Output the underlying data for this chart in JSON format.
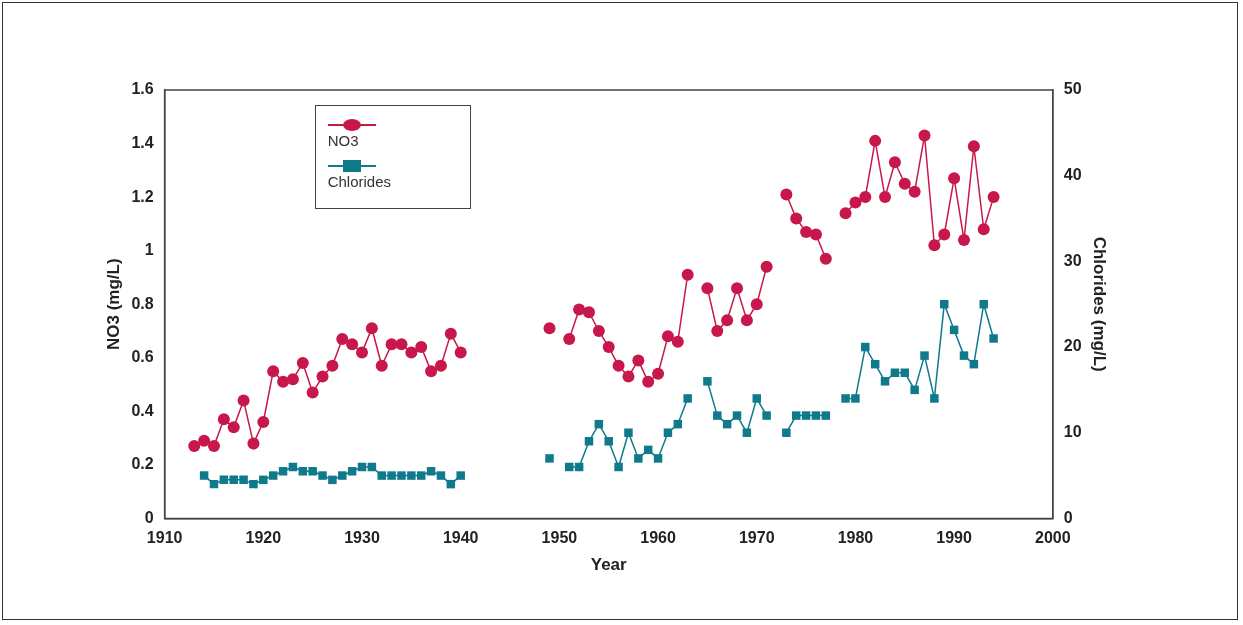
{
  "chart_data": {
    "type": "line",
    "xlabel": "Year",
    "ylabel": "NO3 (mg/L)",
    "y2label": "Chlorides (mg/L)",
    "x": [
      1913,
      1914,
      1915,
      1916,
      1917,
      1918,
      1919,
      1920,
      1921,
      1922,
      1923,
      1924,
      1925,
      1926,
      1927,
      1928,
      1929,
      1930,
      1931,
      1932,
      1933,
      1934,
      1935,
      1936,
      1937,
      1938,
      1939,
      1940,
      1941,
      1942,
      1943,
      1944,
      1945,
      1946,
      1947,
      1948,
      1949,
      1950,
      1951,
      1952,
      1953,
      1954,
      1955,
      1956,
      1957,
      1958,
      1959,
      1960,
      1961,
      1962,
      1963,
      1964,
      1965,
      1966,
      1967,
      1968,
      1969,
      1970,
      1971,
      1972,
      1973,
      1974,
      1975,
      1976,
      1977,
      1978,
      1979,
      1980,
      1981,
      1982,
      1983,
      1984,
      1985,
      1986,
      1987,
      1988,
      1989,
      1990,
      1991,
      1992,
      1993,
      1994
    ],
    "series": [
      {
        "name": "NO3",
        "color": "#c8174a",
        "marker": "circle",
        "values": [
          0.27,
          0.29,
          0.27,
          0.37,
          0.34,
          0.44,
          0.28,
          0.36,
          0.55,
          0.51,
          0.52,
          0.58,
          0.47,
          0.53,
          0.57,
          0.67,
          0.65,
          0.62,
          0.71,
          0.57,
          0.65,
          0.65,
          0.62,
          0.64,
          0.55,
          0.57,
          0.69,
          0.62,
          null,
          null,
          null,
          null,
          null,
          null,
          null,
          null,
          0.71,
          null,
          0.67,
          0.78,
          0.77,
          0.7,
          0.64,
          0.57,
          0.53,
          0.59,
          0.51,
          0.54,
          0.68,
          0.66,
          0.91,
          null,
          0.86,
          0.7,
          0.74,
          0.86,
          0.74,
          0.8,
          0.94,
          null,
          1.21,
          1.12,
          1.07,
          1.06,
          0.97,
          null,
          1.14,
          1.18,
          1.2,
          1.41,
          1.2,
          1.33,
          1.25,
          1.22,
          1.43,
          1.02,
          1.06,
          1.27,
          1.04,
          1.39,
          1.08,
          1.2
        ]
      },
      {
        "name": "Chlorides",
        "color": "#0e7a8c",
        "marker": "square",
        "axis": "y2",
        "values": [
          null,
          5,
          4,
          4.5,
          4.5,
          4.5,
          4,
          4.5,
          5,
          5.5,
          6,
          5.5,
          5.5,
          5,
          4.5,
          5,
          5.5,
          6,
          6,
          5,
          5,
          5,
          5,
          5,
          5.5,
          5,
          4,
          5,
          null,
          null,
          null,
          null,
          null,
          null,
          null,
          null,
          7,
          null,
          6,
          6,
          9,
          11,
          9,
          6,
          10,
          7,
          8,
          7,
          10,
          11,
          14,
          null,
          16,
          12,
          11,
          12,
          10,
          14,
          12,
          null,
          10,
          12,
          12,
          12,
          12,
          null,
          14,
          14,
          20,
          18,
          16,
          17,
          17,
          15,
          19,
          14,
          25,
          22,
          19,
          18,
          25,
          21
        ]
      }
    ],
    "xlim": [
      1910,
      2000
    ],
    "xticks": [
      1910,
      1920,
      1930,
      1940,
      1950,
      1960,
      1970,
      1980,
      1990,
      2000
    ],
    "ylim": [
      0,
      1.6
    ],
    "yticks": [
      0,
      0.2,
      0.4,
      0.6,
      0.8,
      1,
      1.2,
      1.4,
      1.6
    ],
    "y2lim": [
      0,
      50
    ],
    "y2ticks": [
      0,
      10,
      20,
      30,
      40,
      50
    ],
    "legend": "top left",
    "line_style": "solid",
    "grid": false
  }
}
